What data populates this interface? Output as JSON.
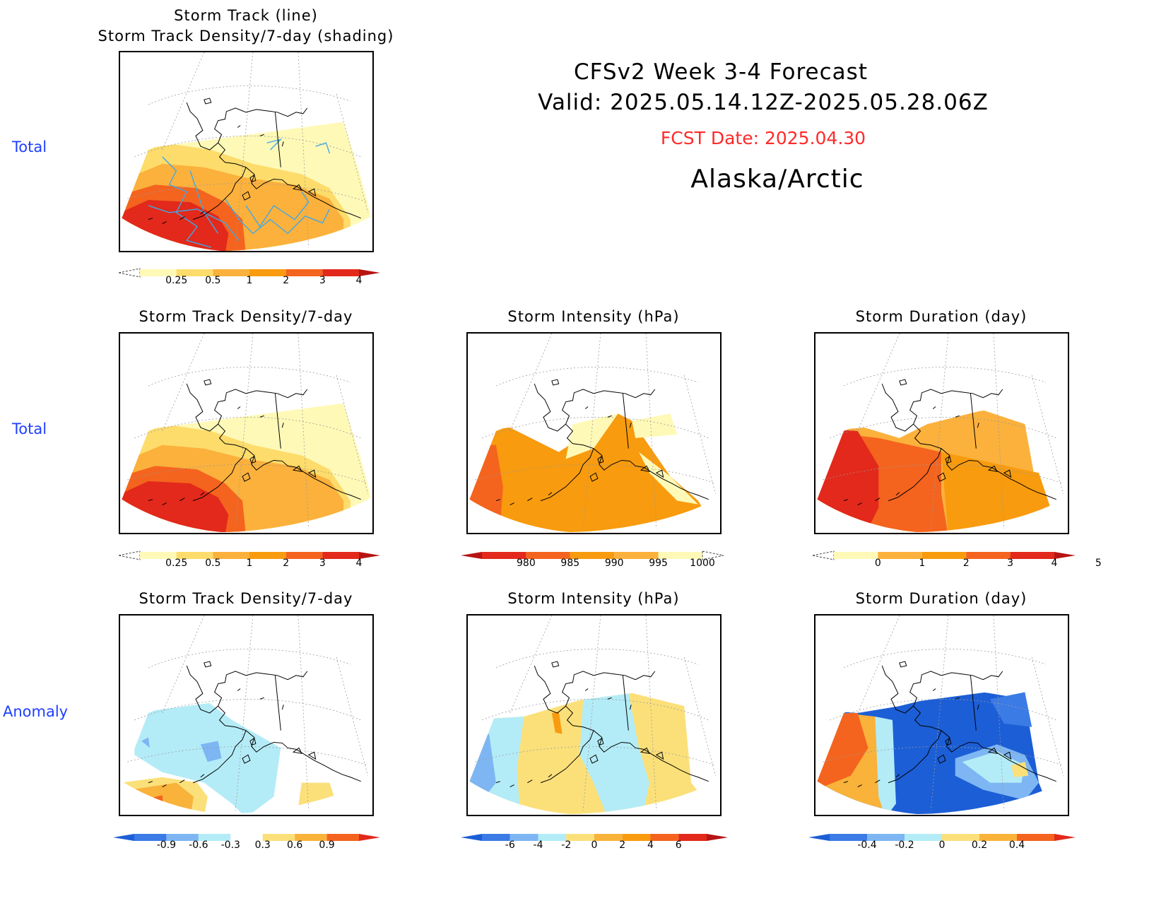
{
  "header": {
    "title_line1": "CFSv2 Week 3-4 Forecast",
    "title_line2": "Valid: 2025.05.14.12Z-2025.05.28.06Z",
    "fcst_date": "FCST Date: 2025.04.30",
    "region": "Alaska/Arctic"
  },
  "row_labels": [
    "Total",
    "Total",
    "Anomaly"
  ],
  "panels": {
    "top_title1": "Storm Track (line)",
    "top_title2": "Storm Track Density/7-day (shading)",
    "density_title": "Storm Track Density/7-day",
    "intensity_title": "Storm Intensity (hPa)",
    "duration_title": "Storm Duration (day)"
  },
  "colorbars": {
    "density_total": {
      "labels": [
        "0.25",
        "0.5",
        "1",
        "2",
        "3",
        "4"
      ],
      "colors": [
        "#fff9b7",
        "#fddc6b",
        "#fbb13c",
        "#f89b0e",
        "#f4641e",
        "#e2291b",
        "#b71414"
      ]
    },
    "intensity_total": {
      "labels": [
        "980",
        "985",
        "990",
        "995",
        "1000"
      ],
      "colors": [
        "#b71414",
        "#e2291b",
        "#f4641e",
        "#f89b0e",
        "#fbb13c",
        "#fff9b7"
      ]
    },
    "duration_total": {
      "labels": [
        "0",
        "1",
        "2",
        "3",
        "4",
        "5"
      ],
      "colors": [
        "#fff9b7",
        "#fbb13c",
        "#f89b0e",
        "#f4641e",
        "#e2291b",
        "#b71414"
      ]
    },
    "density_anom": {
      "labels": [
        "-0.9",
        "-0.6",
        "-0.3",
        "0.3",
        "0.6",
        "0.9"
      ],
      "colors": [
        "#1c5ed6",
        "#3b7be6",
        "#7db6f2",
        "#b3ecf7",
        "#ffffff",
        "#fbe07a",
        "#f9b23a",
        "#f4641e",
        "#e2291b"
      ]
    },
    "intensity_anom": {
      "labels": [
        "-6",
        "-4",
        "-2",
        "0",
        "2",
        "4",
        "6"
      ],
      "colors": [
        "#1c5ed6",
        "#3b7be6",
        "#7db6f2",
        "#b3ecf7",
        "#fbe07a",
        "#f9b23a",
        "#f89b0e",
        "#f4641e",
        "#e2291b",
        "#b71414"
      ]
    },
    "duration_anom": {
      "labels": [
        "-0.4",
        "-0.2",
        "0",
        "0.2",
        "0.4"
      ],
      "colors": [
        "#1c5ed6",
        "#3b7be6",
        "#7db6f2",
        "#b3ecf7",
        "#fbe07a",
        "#f9b23a",
        "#f4641e",
        "#e2291b"
      ]
    }
  }
}
